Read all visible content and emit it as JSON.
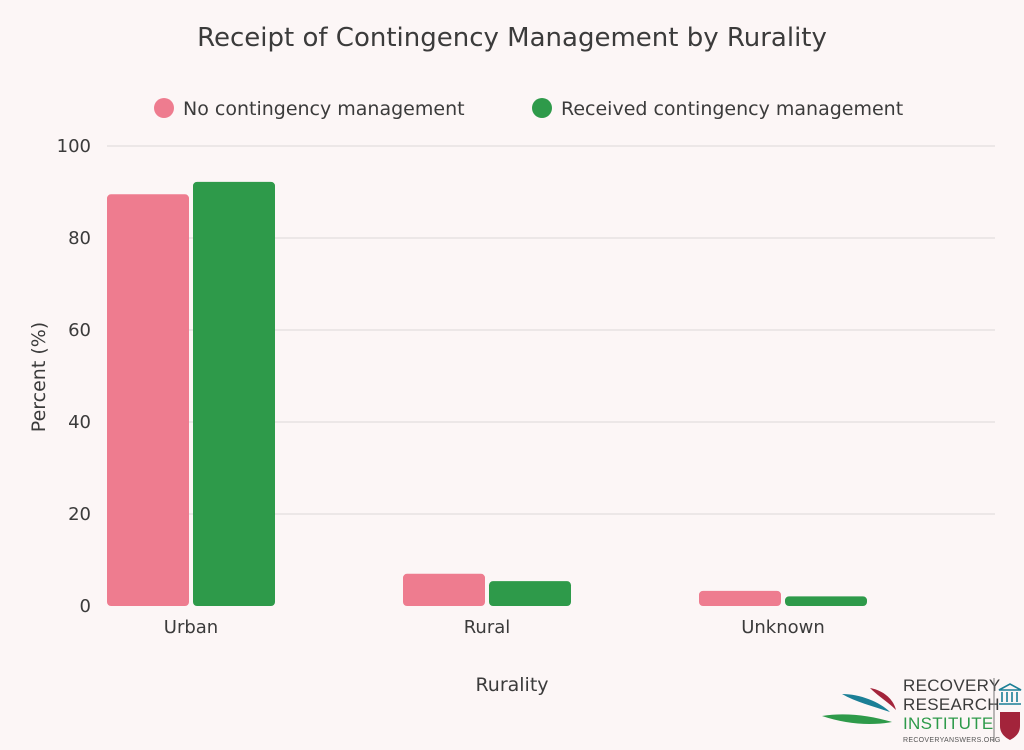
{
  "chart_data": {
    "type": "bar",
    "title": "Receipt of Contingency Management by Rurality",
    "xlabel": "Rurality",
    "ylabel": "Percent (%)",
    "ylim": [
      0,
      100
    ],
    "yticks": [
      0,
      20,
      40,
      60,
      80,
      100
    ],
    "grid": true,
    "legend_position": "top",
    "categories": [
      "Urban",
      "Rural",
      "Unknown"
    ],
    "series": [
      {
        "name": "No contingency management",
        "color": "#ee7c8f",
        "values": [
          89.5,
          7.0,
          3.3
        ]
      },
      {
        "name": "Received contingency management",
        "color": "#2e9a4a",
        "values": [
          92.2,
          5.4,
          2.1
        ]
      }
    ]
  },
  "logo": {
    "line1": "RECOVERY",
    "line2": "RESEARCH",
    "line3": "INSTITUTE",
    "url": "RECOVERYANSWERS.ORG"
  }
}
